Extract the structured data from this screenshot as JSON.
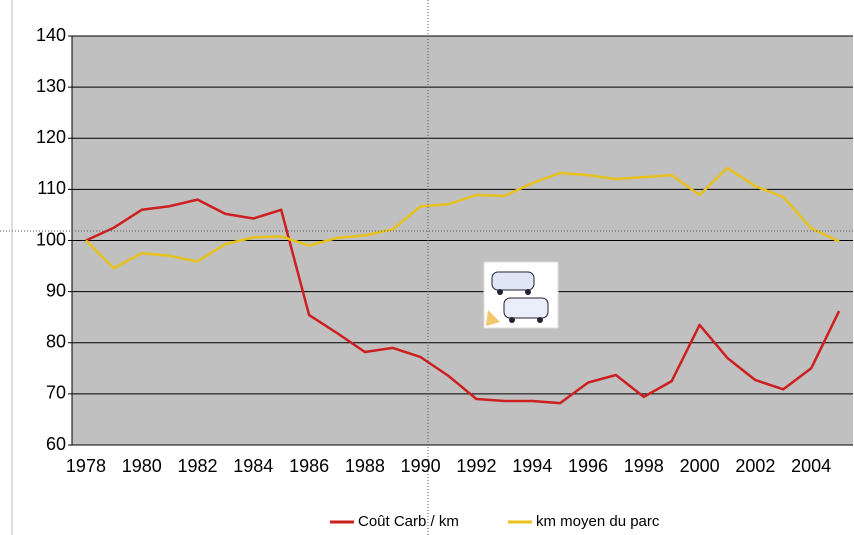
{
  "chart_data": {
    "type": "line",
    "categories": [
      "1978",
      null,
      "1980",
      null,
      "1982",
      null,
      "1984",
      null,
      "1986",
      null,
      "1988",
      null,
      "1990",
      null,
      "1992",
      null,
      "1994",
      null,
      "1996",
      null,
      "1998",
      null,
      "2000",
      null,
      "2002",
      null,
      "2004",
      null
    ],
    "series": [
      {
        "name": "Coût Carb / km",
        "color": "#cc1f1f",
        "values": [
          100,
          102.5,
          106,
          106.7,
          108,
          105.2,
          104.3,
          106,
          85.4,
          81.9,
          78.2,
          79,
          77.2,
          73.5,
          69,
          68.6,
          68.6,
          68.2,
          72.2,
          73.7,
          69.4,
          72.5,
          83.5,
          77,
          72.7,
          70.9,
          75,
          86.2
        ]
      },
      {
        "name": "km moyen du parc",
        "color": "#e8c21c",
        "values": [
          100,
          94.6,
          97.5,
          97,
          95.9,
          99.3,
          100.6,
          100.8,
          99,
          100.5,
          101,
          102.2,
          106.7,
          107.1,
          108.9,
          108.7,
          111.2,
          113.2,
          112.8,
          112,
          112.4,
          112.8,
          108.9,
          114.2,
          110.6,
          108.5,
          102.4,
          99.8
        ]
      }
    ],
    "ylim": [
      60,
      140
    ],
    "yticks": [
      60,
      70,
      80,
      90,
      100,
      110,
      120,
      130,
      140
    ],
    "grid": true,
    "legend": "bottom"
  }
}
